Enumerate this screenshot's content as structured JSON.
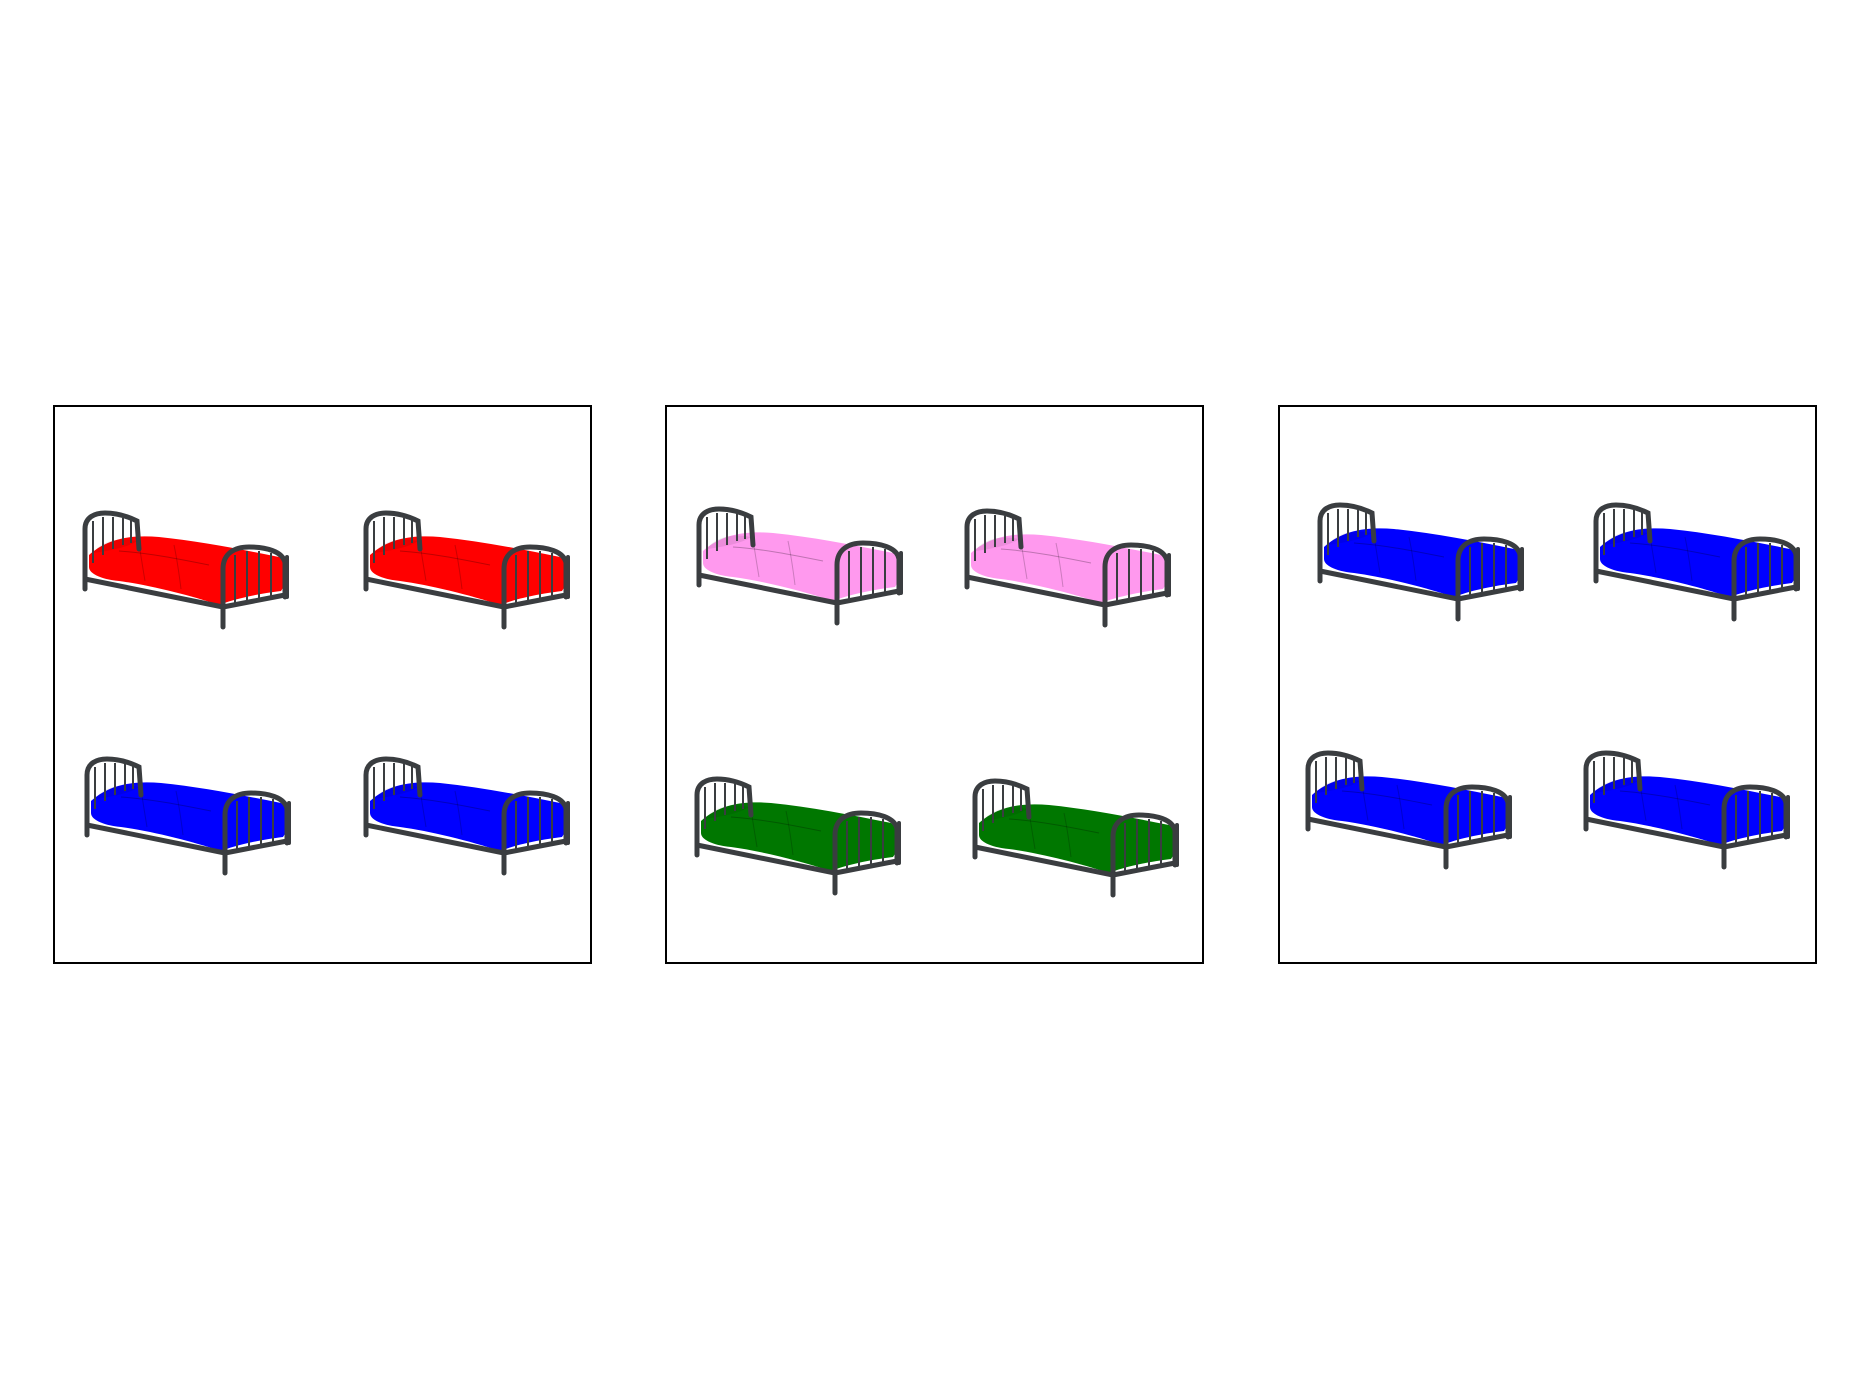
{
  "colors": {
    "frame": "#3a3d40",
    "red": "#ff0000",
    "blue": "#0000ff",
    "pink": "#ff99ee",
    "green": "#007700"
  },
  "panels": [
    {
      "beds": [
        {
          "icon": "bed-icon",
          "sheet_color": "red"
        },
        {
          "icon": "bed-icon",
          "sheet_color": "red"
        },
        {
          "icon": "bed-icon",
          "sheet_color": "blue"
        },
        {
          "icon": "bed-icon",
          "sheet_color": "blue"
        }
      ]
    },
    {
      "beds": [
        {
          "icon": "bed-icon",
          "sheet_color": "pink"
        },
        {
          "icon": "bed-icon",
          "sheet_color": "pink"
        },
        {
          "icon": "bed-icon",
          "sheet_color": "green"
        },
        {
          "icon": "bed-icon",
          "sheet_color": "green"
        }
      ]
    },
    {
      "beds": [
        {
          "icon": "bed-icon",
          "sheet_color": "blue"
        },
        {
          "icon": "bed-icon",
          "sheet_color": "blue"
        },
        {
          "icon": "bed-icon",
          "sheet_color": "blue"
        },
        {
          "icon": "bed-icon",
          "sheet_color": "blue"
        }
      ]
    }
  ]
}
